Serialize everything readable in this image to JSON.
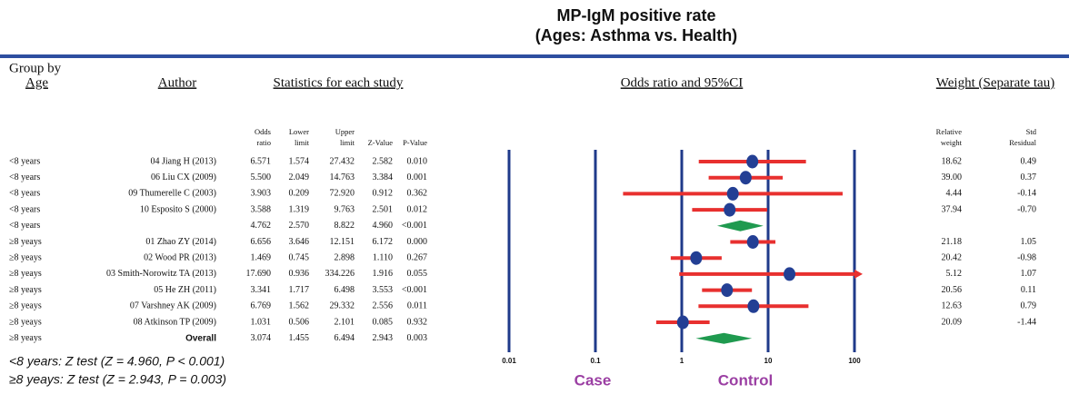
{
  "chart_data": {
    "type": "forest",
    "title": [
      "MP-IgM positive rate",
      "(Ages: Asthma vs. Health)"
    ],
    "headers": {
      "group": [
        "Group by",
        "Age"
      ],
      "author": "Author",
      "stats": "Statistics for each study",
      "plot": "Odds ratio and 95%CI",
      "weight": "Weight (Separate tau)"
    },
    "columns": {
      "odds": [
        "Odds",
        "ratio"
      ],
      "lower": [
        "Lower",
        "limit"
      ],
      "upper": [
        "Upper",
        "limit"
      ],
      "z": [
        "Z-Value"
      ],
      "p": [
        "P-Value"
      ],
      "weight": [
        "Relative",
        "weight"
      ],
      "resid": [
        "Std",
        "Residual"
      ]
    },
    "groups": [
      "<8 years",
      "<8 years",
      "<8 years",
      "<8 years",
      "<8 years",
      "≥8 yeays",
      "≥8 yeays",
      "≥8 yeays",
      "≥8 yeays",
      "≥8 yeays",
      "≥8 yeays",
      "≥8 yeays"
    ],
    "authors": [
      "04 Jiang H (2013)",
      "06 Liu CX (2009)",
      "09 Thumerelle C (2003)",
      "10 Esposito S (2000)",
      null,
      "01 Zhao ZY (2014)",
      "02 Wood PR (2013)",
      "03 Smith-Norowitz TA (2013)",
      "05 He ZH (2011)",
      "07 Varshney AK (2009)",
      "08 Atkinson TP (2009)",
      "Overall"
    ],
    "odds": [
      6.571,
      5.5,
      3.903,
      3.588,
      4.762,
      6.656,
      1.469,
      17.69,
      3.341,
      6.769,
      1.031,
      3.074
    ],
    "odds_labels": [
      "6.571",
      "5.500",
      "3.903",
      "3.588",
      "4.762",
      "6.656",
      "1.469",
      "17.690",
      "3.341",
      "6.769",
      "1.031",
      "3.074"
    ],
    "lower": [
      1.574,
      2.049,
      0.209,
      1.319,
      2.57,
      3.646,
      0.745,
      0.936,
      1.717,
      1.562,
      0.506,
      1.455
    ],
    "lower_labels": [
      "1.574",
      "2.049",
      "0.209",
      "1.319",
      "2.570",
      "3.646",
      "0.745",
      "0.936",
      "1.717",
      "1.562",
      "0.506",
      "1.455"
    ],
    "upper": [
      27.432,
      14.763,
      72.92,
      9.763,
      8.822,
      12.151,
      2.898,
      334.226,
      6.498,
      29.332,
      2.101,
      6.494
    ],
    "upper_labels": [
      "27.432",
      "14.763",
      "72.920",
      "9.763",
      "8.822",
      "12.151",
      "2.898",
      "334.226",
      "6.498",
      "29.332",
      "2.101",
      "6.494"
    ],
    "z": [
      "2.582",
      "3.384",
      "0.912",
      "2.501",
      "4.960",
      "6.172",
      "1.110",
      "1.916",
      "3.553",
      "2.556",
      "0.085",
      "2.943"
    ],
    "p": [
      "0.010",
      "0.001",
      "0.362",
      "0.012",
      "<0.001",
      "0.000",
      "0.267",
      "0.055",
      "<0.001",
      "0.011",
      "0.932",
      "0.003"
    ],
    "weight": [
      "18.62",
      "39.00",
      "4.44",
      "37.94",
      null,
      "21.18",
      "20.42",
      "5.12",
      "20.56",
      "12.63",
      "20.09",
      null
    ],
    "resid": [
      "0.49",
      "0.37",
      "-0.14",
      "-0.70",
      null,
      "1.05",
      "-0.98",
      "1.07",
      "0.11",
      "0.79",
      "-1.44",
      null
    ],
    "xlim": [
      0.01,
      100
    ],
    "xticks": [
      0.01,
      0.1,
      1,
      10,
      100
    ],
    "log_x": true,
    "ci_color": "#e8302f",
    "point_color": "#233f94",
    "summary_color": "#1f9a4f",
    "axis_color": "#1f3a8a",
    "left_label": "Case",
    "right_label": "Control",
    "label_color": "#9b3fa3",
    "footnotes": [
      "<8 years:  Z test (Z = 4.960, P < 0.001)",
      "≥8 yeays: Z test (Z = 2.943, P = 0.003)"
    ]
  }
}
